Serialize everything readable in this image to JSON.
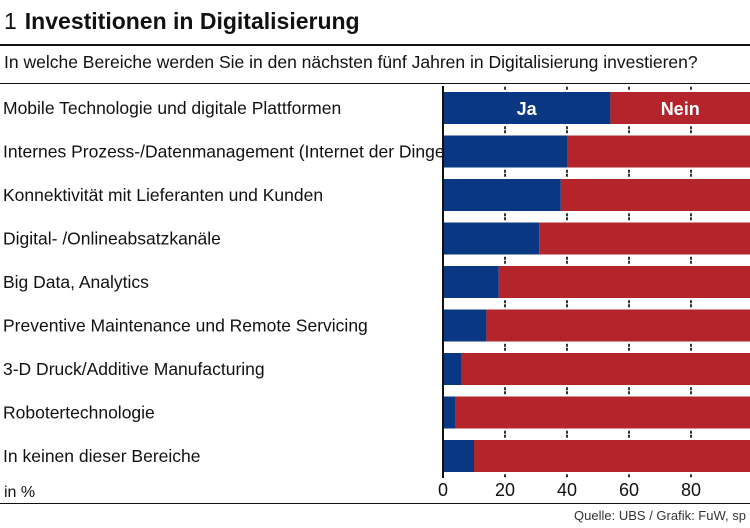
{
  "header": {
    "number": "1",
    "title": "Investitionen in Digitalisierung",
    "subtitle": "In welche Bereiche werden Sie in den nächsten fünf Jahren in Digitalisierung investieren?"
  },
  "footer": {
    "source": "Quelle: UBS / Grafik: FuW, sp"
  },
  "chart_data": {
    "type": "bar",
    "orientation": "horizontal",
    "stacked": true,
    "title": "Investitionen in Digitalisierung",
    "xlabel": "in %",
    "xlim": [
      0,
      100
    ],
    "ticks": [
      0,
      20,
      40,
      60,
      80
    ],
    "categories": [
      "Mobile Technologie und digitale Plattformen",
      "Internes Prozess-/Datenmanagement (Internet der Dinge)",
      "Konnektivität mit Lieferanten und Kunden",
      "Digital- /Onlineabsatzkanäle",
      "Big Data, Analytics",
      "Preventive Maintenance und Remote Servicing",
      "3-D Druck/Additive Manufacturing",
      "Robotertechnologie",
      "In keinen dieser Bereiche"
    ],
    "series": [
      {
        "name": "Ja",
        "color": "#0a3782",
        "values": [
          54,
          40,
          38,
          31,
          18,
          14,
          6,
          4,
          10
        ]
      },
      {
        "name": "Nein",
        "color": "#b3242b",
        "values": [
          46,
          60,
          62,
          69,
          82,
          86,
          94,
          96,
          90
        ]
      }
    ]
  }
}
